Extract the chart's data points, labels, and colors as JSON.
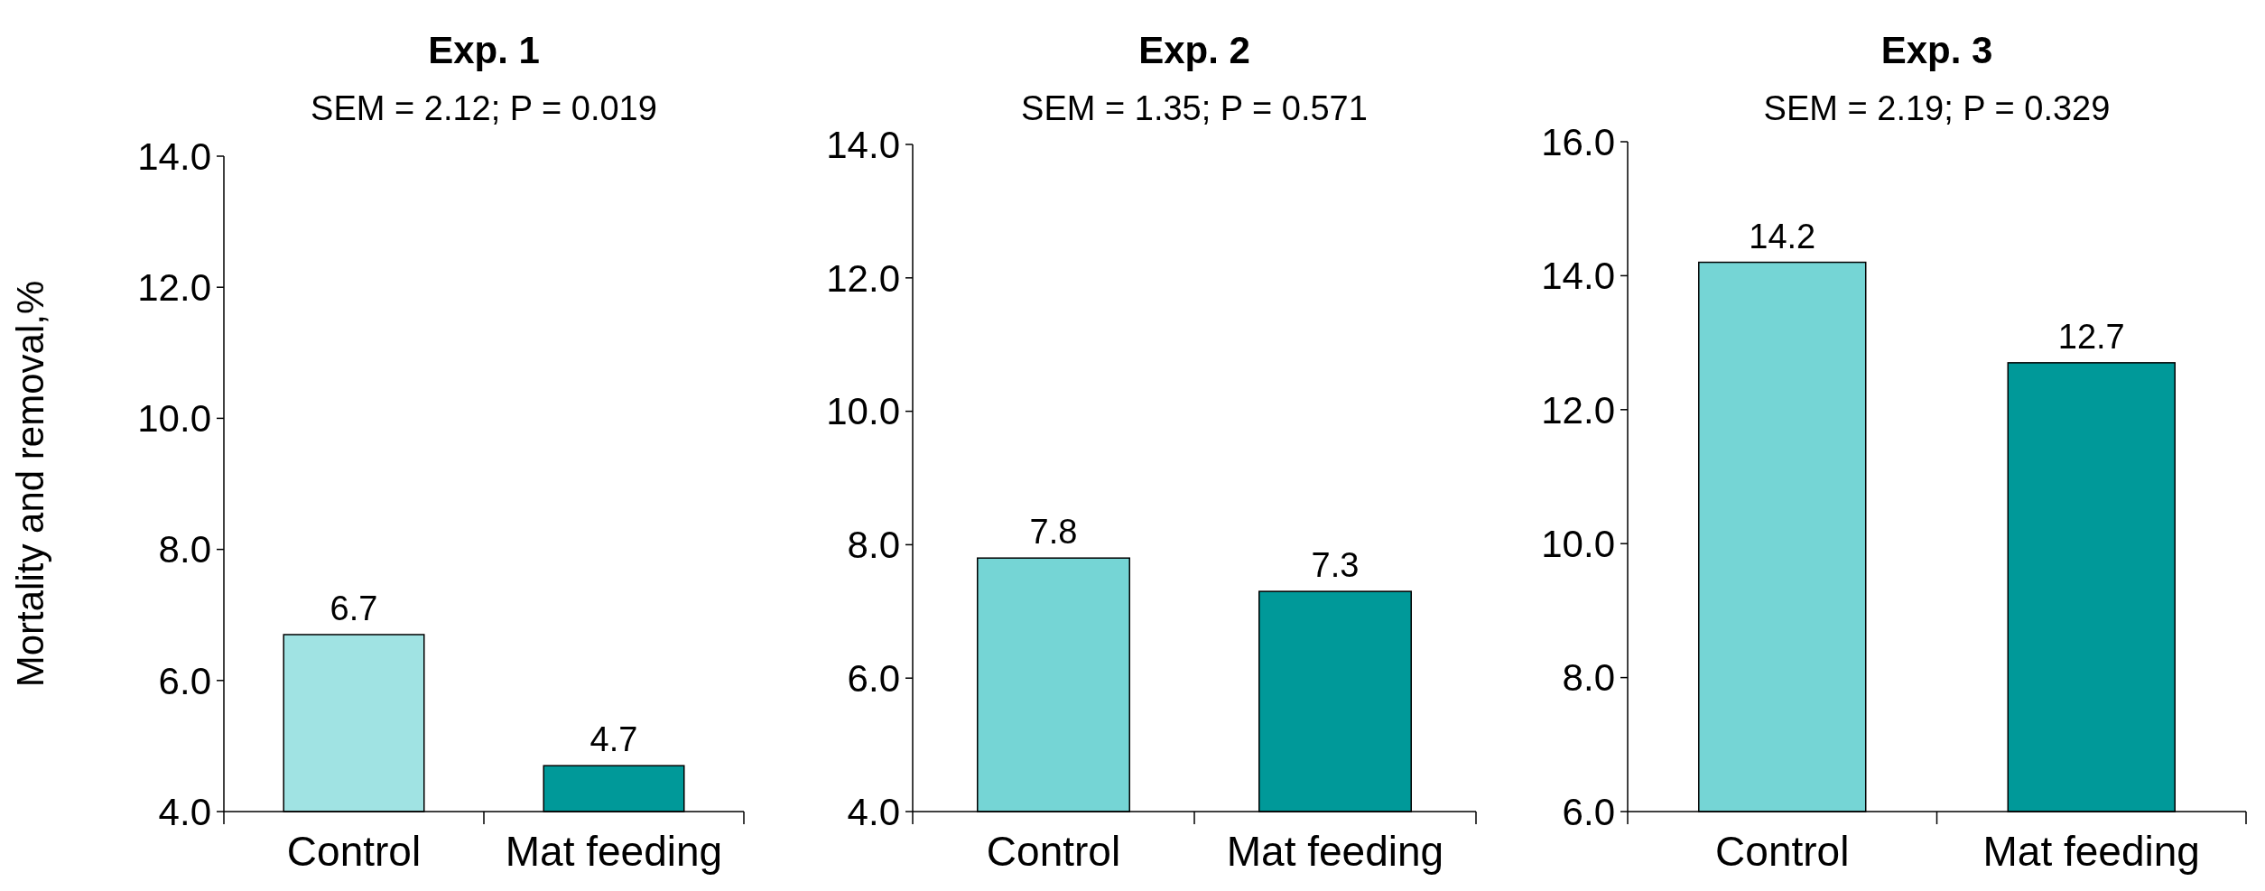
{
  "chart_data": [
    {
      "type": "bar",
      "title": "Exp. 1",
      "subtitle": "SEM = 2.12; P = 0.019",
      "ylabel": "Mortality and removal,%",
      "categories": [
        "Control",
        "Mat feeding"
      ],
      "values": [
        6.7,
        4.7
      ],
      "colors": [
        "#a0e3e3",
        "#009999"
      ],
      "ylim": [
        4,
        14
      ],
      "yticks": [
        {
          "value": 4,
          "label": "4.0"
        },
        {
          "value": 6,
          "label": "6.0"
        },
        {
          "value": 8,
          "label": "8.0"
        },
        {
          "value": 10,
          "label": "10.0"
        },
        {
          "value": 12,
          "label": "12.0"
        },
        {
          "value": 14,
          "label": "14.0"
        }
      ],
      "data_labels": true
    },
    {
      "type": "bar",
      "title": "Exp. 2",
      "subtitle": "SEM = 1.35; P = 0.571",
      "categories": [
        "Control",
        "Mat feeding"
      ],
      "values": [
        7.8,
        7.3
      ],
      "colors": [
        "#75d5d5",
        "#009999"
      ],
      "ylim": [
        4,
        14
      ],
      "yticks": [
        {
          "value": 4,
          "label": "4.0"
        },
        {
          "value": 6,
          "label": "6.0"
        },
        {
          "value": 8,
          "label": "8.0"
        },
        {
          "value": 10,
          "label": "10.0"
        },
        {
          "value": 12,
          "label": "12.0"
        },
        {
          "value": 14,
          "label": "14.0"
        }
      ],
      "data_labels": true
    },
    {
      "type": "bar",
      "title": "Exp. 3",
      "subtitle": "SEM = 2.19; P = 0.329",
      "categories": [
        "Control",
        "Mat feeding"
      ],
      "values": [
        14.2,
        12.7
      ],
      "colors": [
        "#75d5d5",
        "#009999"
      ],
      "ylim": [
        6,
        16
      ],
      "yticks": [
        {
          "value": 6,
          "label": "6.0"
        },
        {
          "value": 8,
          "label": "8.0"
        },
        {
          "value": 10,
          "label": "10.0"
        },
        {
          "value": 12,
          "label": "12.0"
        },
        {
          "value": 14,
          "label": "14.0"
        },
        {
          "value": 16,
          "label": "16.0"
        }
      ],
      "data_labels": true
    }
  ]
}
